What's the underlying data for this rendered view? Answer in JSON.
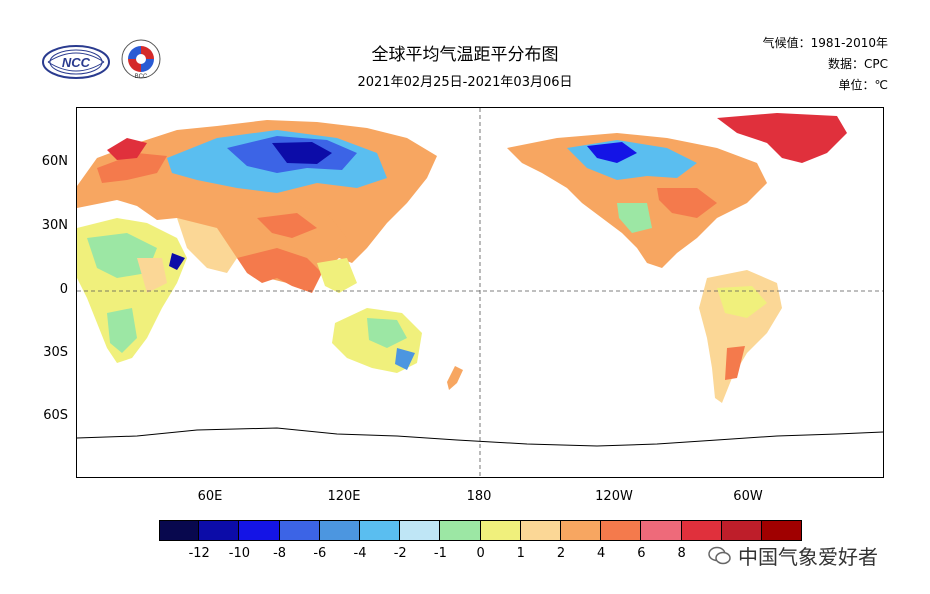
{
  "header": {
    "title": "全球平均气温距平分布图",
    "subtitle": "2021年02月25日-2021年03月06日",
    "climate_normal": "气候值：1981-2010年",
    "data_source": "数据：CPC",
    "unit": "单位：℃"
  },
  "logos": {
    "ncc_text": "NCC",
    "bcc_text": "BCC"
  },
  "map": {
    "lat_ticks": [
      "60N",
      "30N",
      "0",
      "30S",
      "60S"
    ],
    "lon_ticks": [
      "60E",
      "120E",
      "180",
      "120W",
      "60W"
    ]
  },
  "colorbar": {
    "labels": [
      "-12",
      "-10",
      "-8",
      "-6",
      "-4",
      "-2",
      "-1",
      "0",
      "1",
      "2",
      "4",
      "6",
      "8"
    ],
    "colors": [
      "#08084e",
      "#0c0ca8",
      "#1414e6",
      "#3c64e6",
      "#4c96e0",
      "#5abef0",
      "#bfe6f6",
      "#9ce7a4",
      "#f0f07c",
      "#fbd796",
      "#f7a661",
      "#f47a4c",
      "#ee6a7a",
      "#e0303c",
      "#be1e2a",
      "#a00000"
    ]
  },
  "watermark": {
    "text": "中国气象爱好者"
  }
}
